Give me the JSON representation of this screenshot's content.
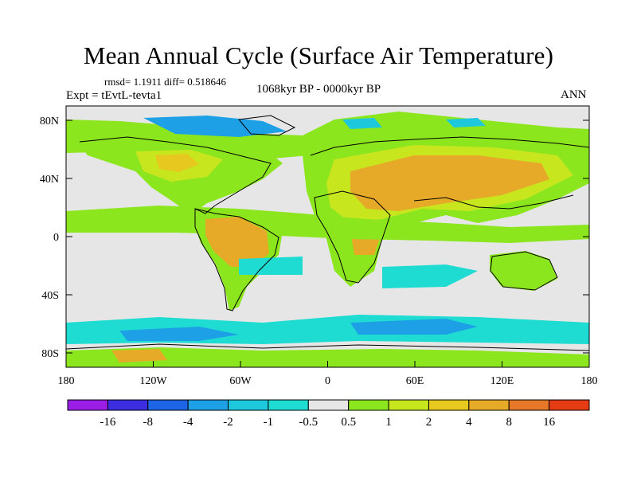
{
  "header": {
    "title": "Mean Annual Cycle (Surface Air Temperature)",
    "stats": "rmsd= 1.1911 diff= 0.518646",
    "experiment": "Expt = tEvtL-tevta1",
    "period": "1068kyr BP - 0000kyr BP",
    "season": "ANN"
  },
  "map": {
    "lat_ticks": [
      "80N",
      "40N",
      "0",
      "40S",
      "80S"
    ],
    "lon_ticks": [
      "180",
      "120W",
      "60W",
      "0",
      "60E",
      "120E",
      "180"
    ]
  },
  "colorbar": {
    "colors": [
      "#9b1ee6",
      "#3c2ee0",
      "#1e64e6",
      "#1ea0e6",
      "#1ec8dc",
      "#1edcd2",
      "#e6e6e6",
      "#8ce61e",
      "#c8e61e",
      "#e6c81e",
      "#e6aa28",
      "#e67828",
      "#e63c14"
    ],
    "labels": [
      "-16",
      "-8",
      "-4",
      "-2",
      "-1",
      "-0.5",
      "0.5",
      "1",
      "2",
      "4",
      "8",
      "16"
    ]
  },
  "colors": {
    "ocean_neutral": "#e6e6e6",
    "weak_warm": "#8ce61e",
    "mid_warm": "#c8e61e",
    "warm": "#e6aa28",
    "cool": "#1edcd2",
    "cold": "#1ea0e6"
  }
}
